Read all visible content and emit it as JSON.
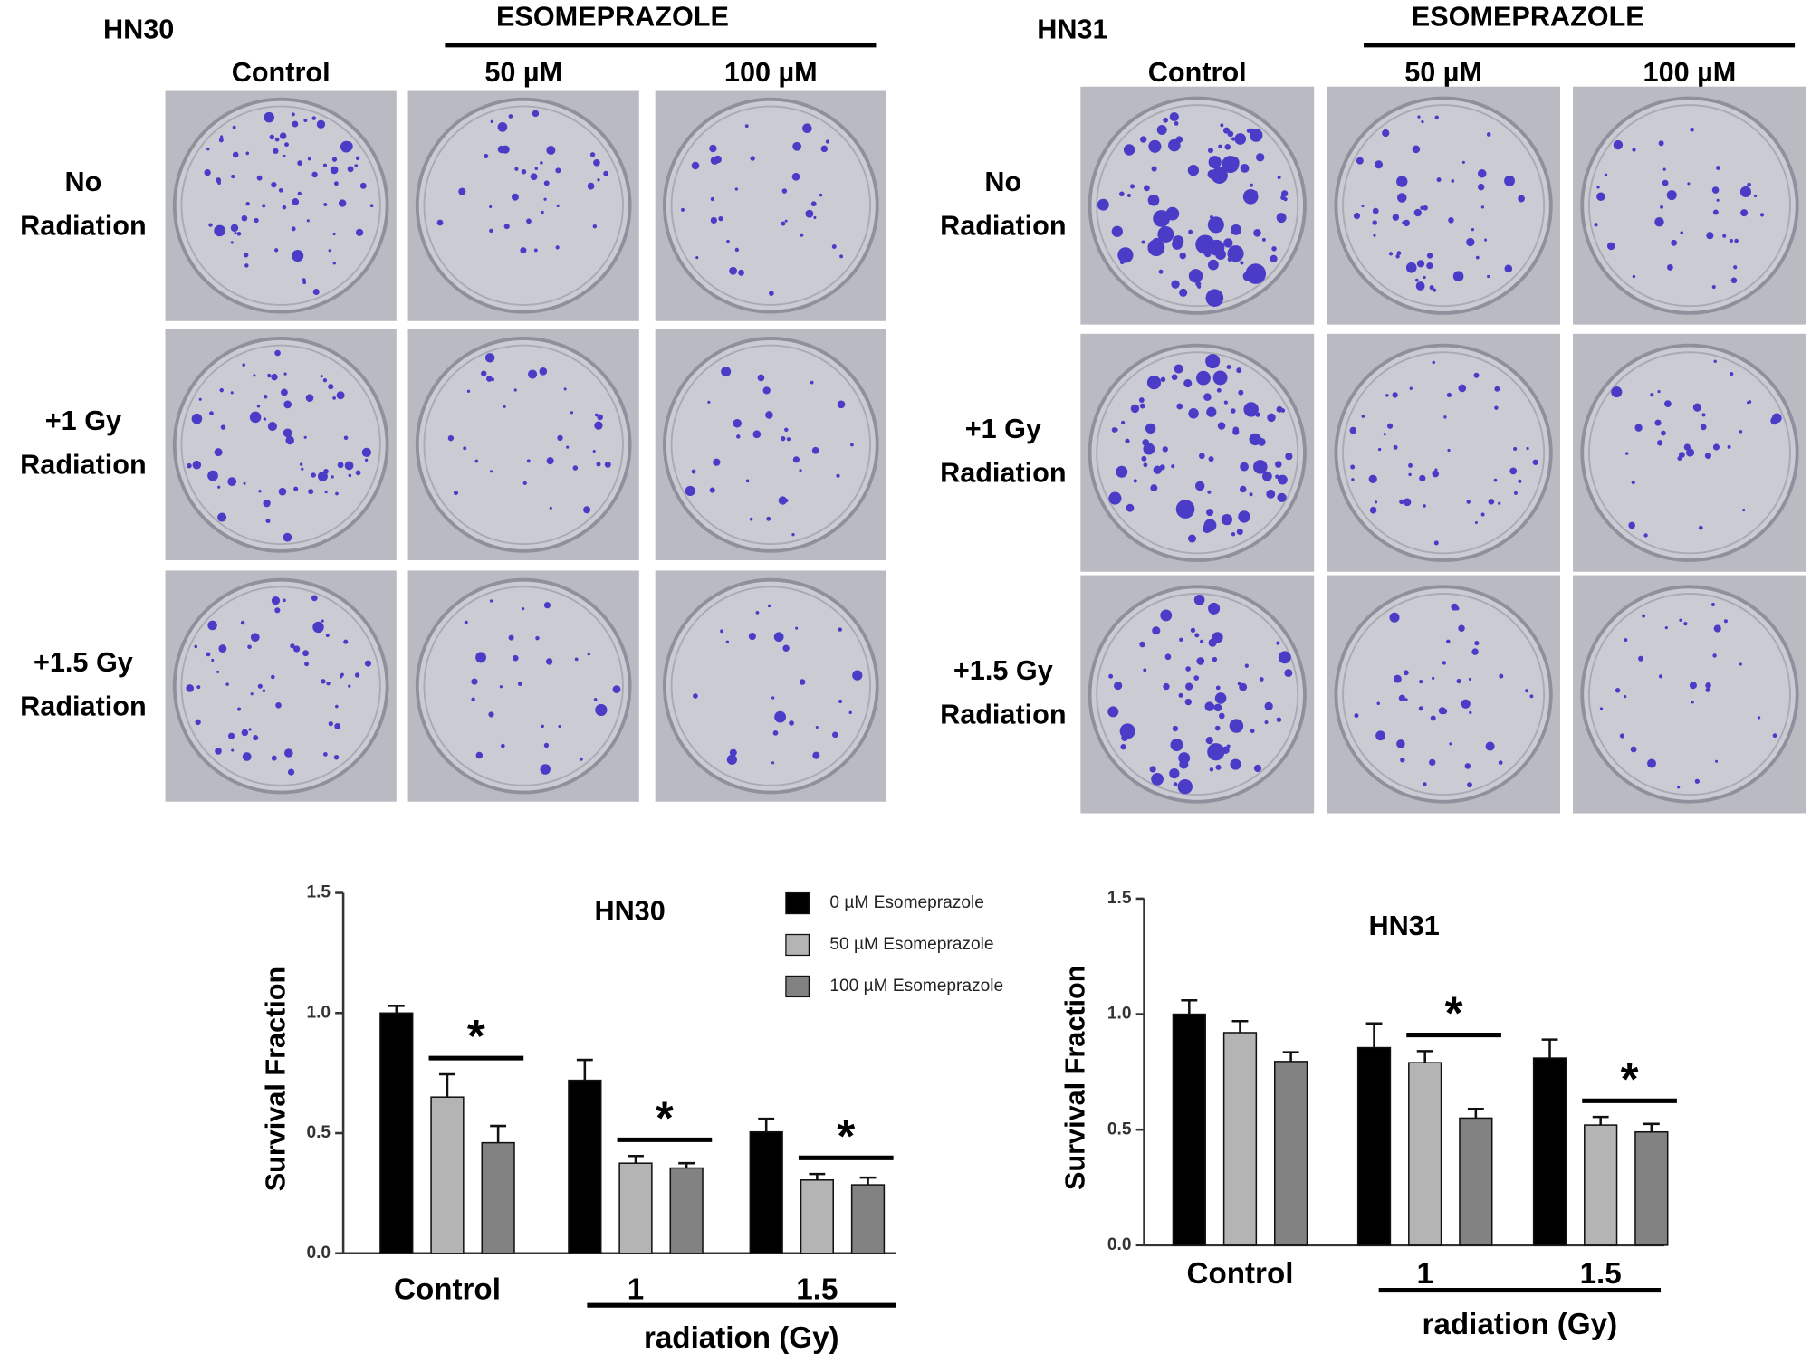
{
  "plates": [
    {
      "cell_line": "HN30",
      "treatment": "ESOMEPRAZOLE",
      "columns": [
        "Control",
        "50 µM",
        "100 µM"
      ],
      "rows": [
        [
          "No",
          "Radiation"
        ],
        [
          "+1 Gy",
          "Radiation"
        ],
        [
          "+1.5 Gy",
          "Radiation"
        ]
      ]
    },
    {
      "cell_line": "HN31",
      "treatment": "ESOMEPRAZOLE",
      "columns": [
        "Control",
        "50 µM",
        "100 µM"
      ],
      "rows": [
        [
          "No",
          "Radiation"
        ],
        [
          "+1 Gy",
          "Radiation"
        ],
        [
          "+1.5 Gy",
          "Radiation"
        ]
      ]
    }
  ],
  "chart_data": [
    {
      "type": "bar",
      "title": "HN30",
      "y_label": "Survival Fraction",
      "x_label": "radiation (Gy)",
      "categories": [
        "Control",
        "1",
        "1.5"
      ],
      "ylim": [
        0,
        1.5
      ],
      "yticks": [
        {
          "value": 0,
          "label": "0.0"
        },
        {
          "value": 0.5,
          "label": "0.5"
        },
        {
          "value": 1,
          "label": "1.0"
        },
        {
          "value": 1.5,
          "label": "1.5"
        }
      ],
      "legend": true,
      "legend_position": "top-right",
      "series": [
        {
          "name": "0 µM Esomeprazole",
          "color": "#000000",
          "values": [
            1.0,
            0.72,
            0.505
          ],
          "errors": [
            0.03,
            0.085,
            0.055
          ]
        },
        {
          "name": "50 µM Esomeprazole",
          "color": "#b4b4b4",
          "values": [
            0.65,
            0.375,
            0.305
          ],
          "errors": [
            0.095,
            0.03,
            0.025
          ]
        },
        {
          "name": "100 µM Esomeprazole",
          "color": "#828282",
          "values": [
            0.46,
            0.355,
            0.285
          ],
          "errors": [
            0.07,
            0.02,
            0.03
          ]
        }
      ],
      "significance": [
        "*",
        "*",
        "*"
      ]
    },
    {
      "type": "bar",
      "title": "HN31",
      "y_label": "Survival Fraction",
      "x_label": "radiation (Gy)",
      "categories": [
        "Control",
        "1",
        "1.5"
      ],
      "ylim": [
        0,
        1.5
      ],
      "yticks": [
        {
          "value": 0,
          "label": "0.0"
        },
        {
          "value": 0.5,
          "label": "0.5"
        },
        {
          "value": 1,
          "label": "1.0"
        },
        {
          "value": 1.5,
          "label": "1.5"
        }
      ],
      "legend": false,
      "series": [
        {
          "color": "#000000",
          "values": [
            1.0,
            0.855,
            0.81
          ],
          "errors": [
            0.06,
            0.105,
            0.08
          ]
        },
        {
          "color": "#b4b4b4",
          "values": [
            0.92,
            0.79,
            0.52
          ],
          "errors": [
            0.05,
            0.05,
            0.035
          ]
        },
        {
          "color": "#828282",
          "values": [
            0.795,
            0.55,
            0.49
          ],
          "errors": [
            0.04,
            0.04,
            0.035
          ]
        }
      ],
      "significance": [
        null,
        "*",
        "*"
      ]
    }
  ]
}
